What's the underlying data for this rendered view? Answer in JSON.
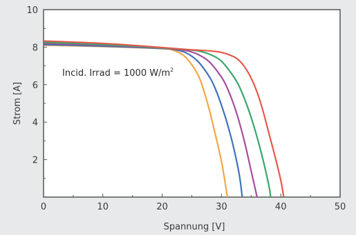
{
  "chart_data": {
    "type": "line",
    "xlabel": "Spannung [V]",
    "ylabel": "Strom [A]",
    "xlim": [
      0,
      50
    ],
    "ylim": [
      0,
      10
    ],
    "xticks": [
      0,
      10,
      20,
      30,
      40,
      50
    ],
    "yticks": [
      2,
      4,
      6,
      8,
      10
    ],
    "grid": false,
    "annotation": {
      "prefix": "Incid. Irrad = 1000 W/m",
      "superscript": "2"
    },
    "series": [
      {
        "color": "#f0a646",
        "x": [
          0,
          5,
          10,
          15,
          20,
          22,
          24,
          26,
          27,
          28,
          29,
          30,
          30.5,
          31
        ],
        "y": [
          8.1,
          8.07,
          8.03,
          7.98,
          7.92,
          7.82,
          7.45,
          6.55,
          5.7,
          4.6,
          3.3,
          1.9,
          1.0,
          0
        ]
      },
      {
        "color": "#3f72b6",
        "x": [
          0,
          5,
          10,
          15,
          20,
          22,
          24,
          26,
          28,
          29,
          30,
          31,
          32,
          33,
          33.5
        ],
        "y": [
          8.14,
          8.1,
          8.05,
          8.0,
          7.93,
          7.88,
          7.7,
          7.25,
          6.4,
          5.75,
          4.9,
          3.9,
          2.7,
          1.2,
          0
        ]
      },
      {
        "color": "#a64d9e",
        "x": [
          0,
          5,
          10,
          15,
          20,
          22,
          24,
          26,
          28,
          30,
          31,
          32,
          33,
          34,
          35,
          36
        ],
        "y": [
          8.2,
          8.15,
          8.1,
          8.03,
          7.95,
          7.9,
          7.82,
          7.62,
          7.2,
          6.4,
          5.8,
          5.0,
          4.0,
          2.8,
          1.4,
          0
        ]
      },
      {
        "color": "#3aa66b",
        "x": [
          0,
          5,
          10,
          15,
          20,
          22,
          24,
          26,
          28,
          30,
          32,
          33,
          34,
          35,
          36,
          37,
          38,
          38.3
        ],
        "y": [
          8.26,
          8.2,
          8.14,
          8.06,
          7.96,
          7.92,
          7.87,
          7.8,
          7.62,
          7.25,
          6.45,
          5.9,
          5.15,
          4.25,
          3.2,
          2.0,
          0.6,
          0
        ]
      },
      {
        "color": "#e5594a",
        "x": [
          0,
          5,
          10,
          15,
          20,
          22,
          24,
          26,
          28,
          30,
          32,
          33,
          34,
          35,
          36,
          37,
          38,
          39,
          40,
          40.5
        ],
        "y": [
          8.33,
          8.27,
          8.2,
          8.1,
          7.98,
          7.93,
          7.88,
          7.84,
          7.8,
          7.72,
          7.5,
          7.28,
          6.9,
          6.35,
          5.6,
          4.6,
          3.4,
          2.2,
          0.9,
          0
        ]
      }
    ]
  }
}
